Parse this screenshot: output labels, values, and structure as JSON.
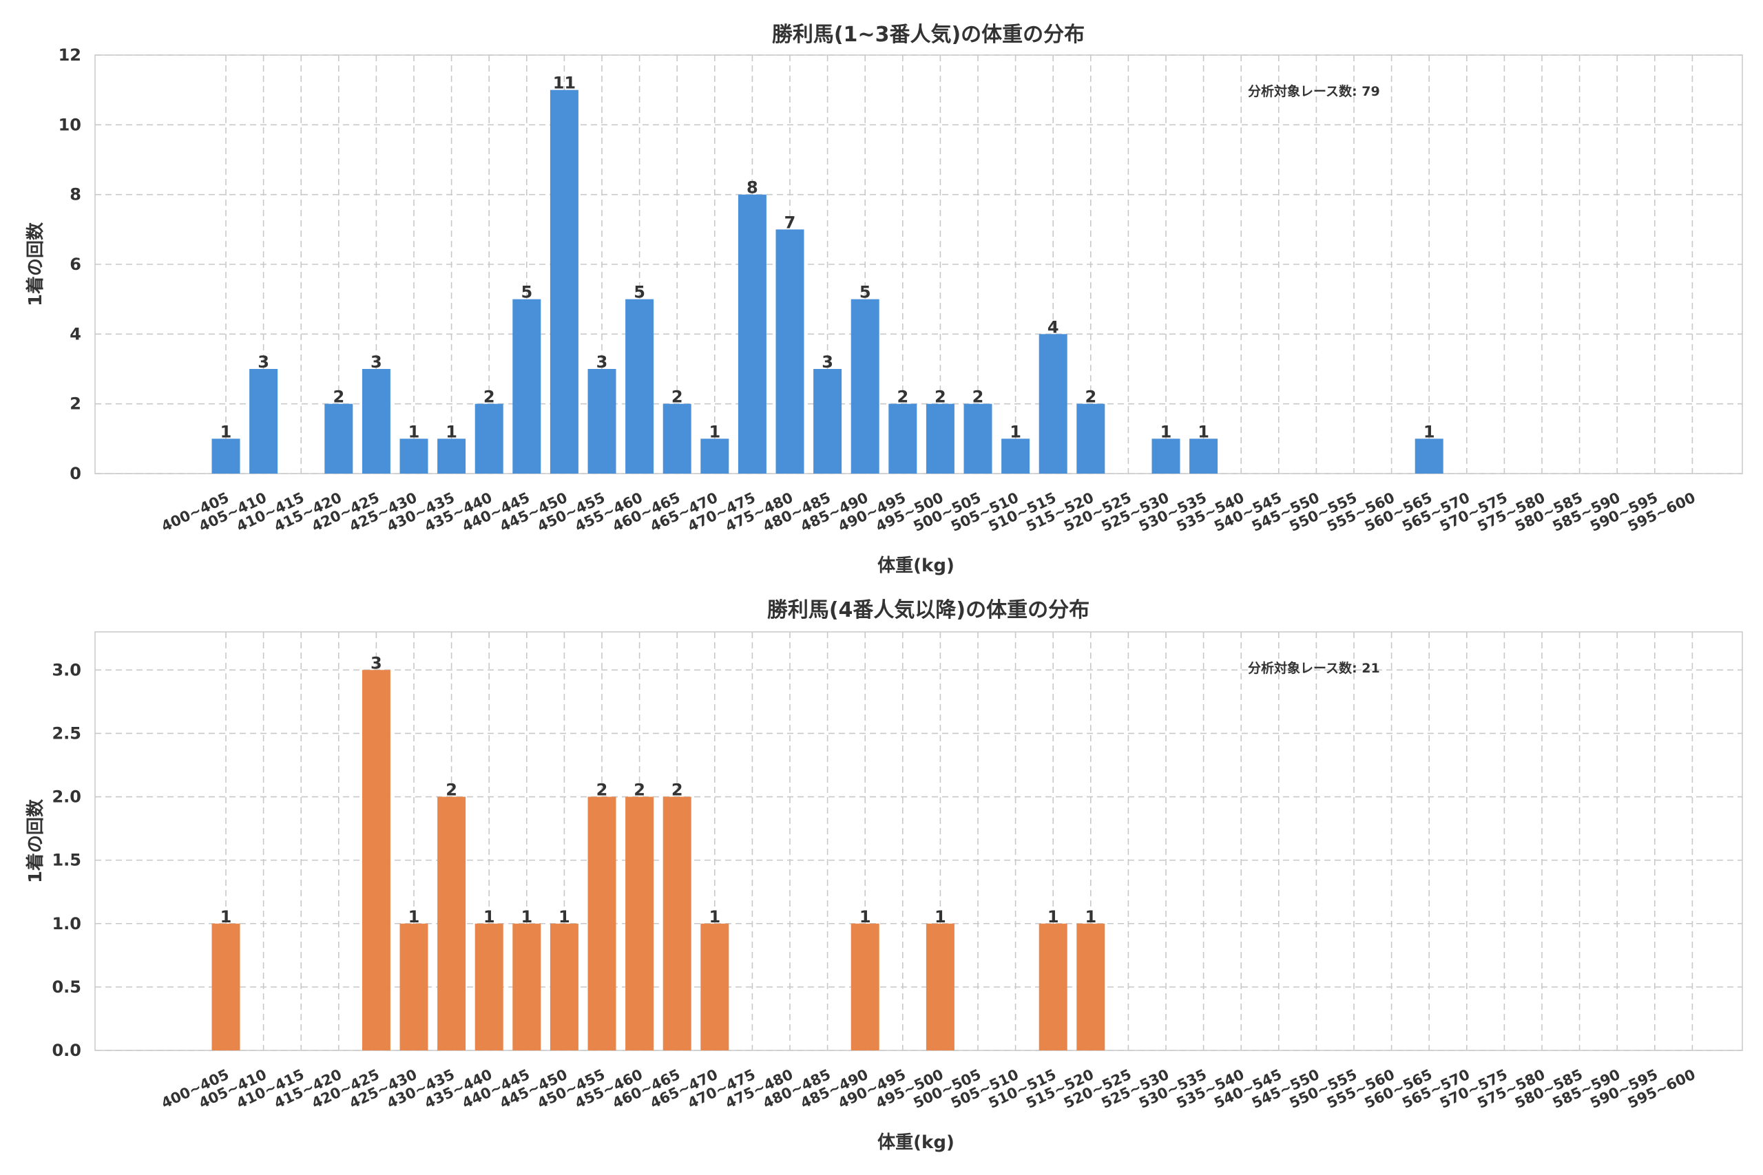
{
  "chart_data": [
    {
      "type": "bar",
      "title": "勝利馬(1~3番人気)の体重の分布",
      "xlabel": "体重(kg)",
      "ylabel": "1着の回数",
      "ylim": [
        0,
        12
      ],
      "yticks": [
        0,
        2,
        4,
        6,
        8,
        10,
        12
      ],
      "ytick_decimals": 0,
      "color": "#4a90d9",
      "grid": true,
      "annotation": "分析対象レース数: 79",
      "categories": [
        "400~405",
        "405~410",
        "410~415",
        "415~420",
        "420~425",
        "425~430",
        "430~435",
        "435~440",
        "440~445",
        "445~450",
        "450~455",
        "455~460",
        "460~465",
        "465~470",
        "470~475",
        "475~480",
        "480~485",
        "485~490",
        "490~495",
        "495~500",
        "500~505",
        "505~510",
        "510~515",
        "515~520",
        "520~525",
        "525~530",
        "530~535",
        "535~540",
        "540~545",
        "545~550",
        "550~555",
        "555~560",
        "560~565",
        "565~570",
        "570~575",
        "575~580",
        "580~585",
        "585~590",
        "590~595",
        "595~600"
      ],
      "values": [
        1,
        3,
        0,
        2,
        3,
        1,
        1,
        2,
        5,
        11,
        3,
        5,
        2,
        1,
        8,
        7,
        3,
        5,
        2,
        2,
        2,
        1,
        4,
        2,
        0,
        1,
        1,
        0,
        0,
        0,
        0,
        0,
        1,
        0,
        0,
        0,
        0,
        0,
        0,
        0
      ]
    },
    {
      "type": "bar",
      "title": "勝利馬(4番人気以降)の体重の分布",
      "xlabel": "体重(kg)",
      "ylabel": "1着の回数",
      "ylim": [
        0,
        3.3
      ],
      "yticks": [
        0,
        0.5,
        1.0,
        1.5,
        2.0,
        2.5,
        3.0
      ],
      "ytick_decimals": 1,
      "color": "#e8854a",
      "grid": true,
      "annotation": "分析対象レース数: 21",
      "categories": [
        "400~405",
        "405~410",
        "410~415",
        "415~420",
        "420~425",
        "425~430",
        "430~435",
        "435~440",
        "440~445",
        "445~450",
        "450~455",
        "455~460",
        "460~465",
        "465~470",
        "470~475",
        "475~480",
        "480~485",
        "485~490",
        "490~495",
        "495~500",
        "500~505",
        "505~510",
        "510~515",
        "515~520",
        "520~525",
        "525~530",
        "530~535",
        "535~540",
        "540~545",
        "545~550",
        "550~555",
        "555~560",
        "560~565",
        "565~570",
        "570~575",
        "575~580",
        "580~585",
        "585~590",
        "590~595",
        "595~600"
      ],
      "values": [
        1,
        0,
        0,
        0,
        3,
        1,
        2,
        1,
        1,
        1,
        2,
        2,
        2,
        1,
        0,
        0,
        0,
        1,
        0,
        1,
        0,
        0,
        1,
        1,
        0,
        0,
        0,
        0,
        0,
        0,
        0,
        0,
        0,
        0,
        0,
        0,
        0,
        0,
        0,
        0
      ]
    }
  ]
}
